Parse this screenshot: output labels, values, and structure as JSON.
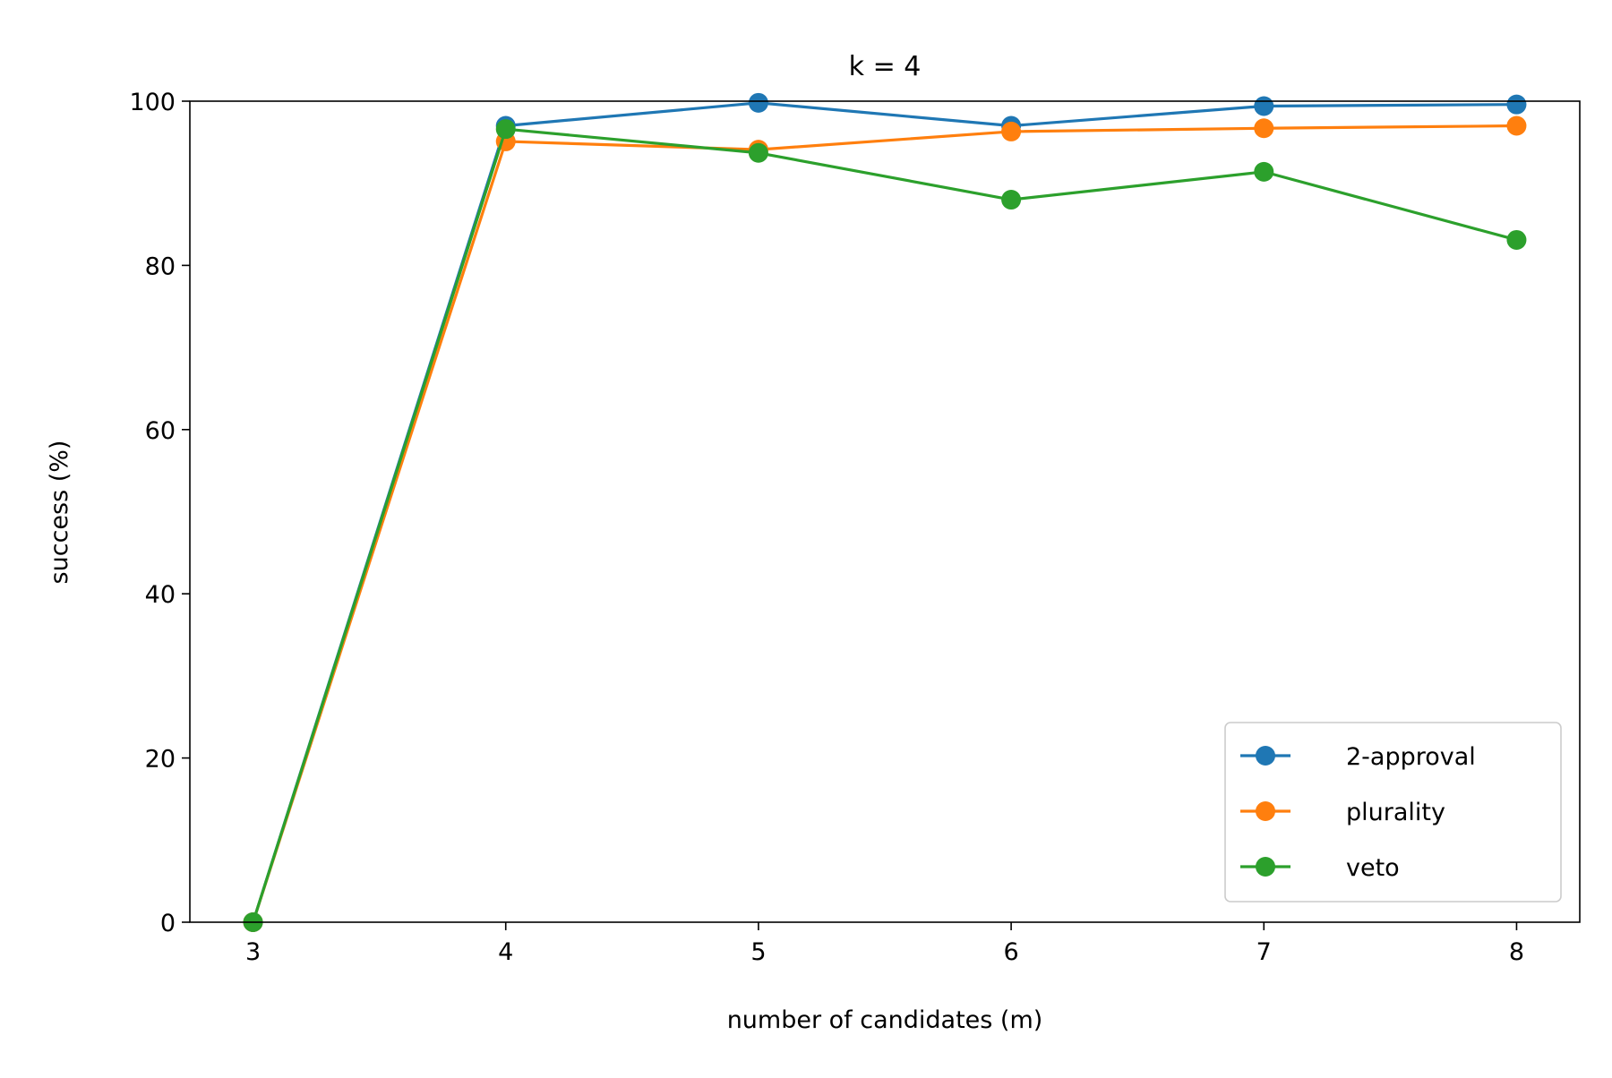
{
  "chart_data": {
    "type": "line",
    "title": "k = 4",
    "xlabel": "number of candidates (m)",
    "ylabel": "success (%)",
    "x": [
      3,
      4,
      5,
      6,
      7,
      8
    ],
    "xticks": [
      "3",
      "4",
      "5",
      "6",
      "7",
      "8"
    ],
    "yticks": [
      "0",
      "20",
      "40",
      "60",
      "80",
      "100"
    ],
    "xlim": [
      2.75,
      8.25
    ],
    "ylim": [
      0,
      100
    ],
    "grid": false,
    "legend_position": "lower-right",
    "series": [
      {
        "name": "2-approval",
        "color": "#1f77b4",
        "values": [
          0,
          97.0,
          99.8,
          97.0,
          99.4,
          99.6
        ]
      },
      {
        "name": "plurality",
        "color": "#ff7f0e",
        "values": [
          0,
          95.1,
          94.1,
          96.3,
          96.7,
          97.0
        ]
      },
      {
        "name": "veto",
        "color": "#2ca02c",
        "values": [
          0,
          96.6,
          93.7,
          88.0,
          91.4,
          83.1
        ]
      }
    ]
  }
}
